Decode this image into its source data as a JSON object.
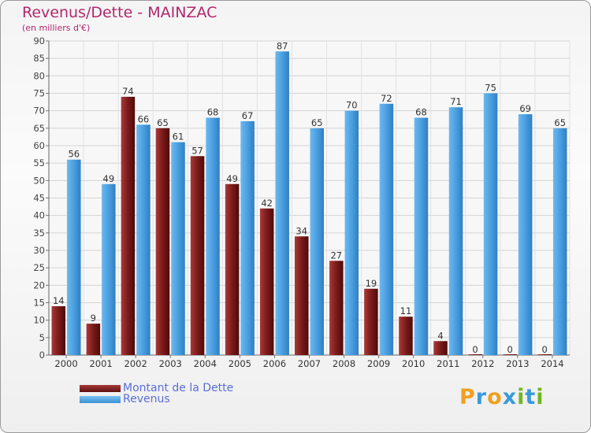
{
  "title": "Revenus/Dette - MAINZAC",
  "subtitle": "(en milliers d'€)",
  "logo": {
    "letters": [
      "P",
      "r",
      "o",
      "x",
      "i",
      "t",
      "i"
    ],
    "colors": [
      "#f0a020",
      "#3a9ad9",
      "#f0a020",
      "#3a9ad9",
      "#70b820",
      "#3a9ad9",
      "#70b820"
    ]
  },
  "chart_data": {
    "type": "bar",
    "categories": [
      "2000",
      "2001",
      "2002",
      "2003",
      "2004",
      "2005",
      "2006",
      "2007",
      "2008",
      "2009",
      "2010",
      "2011",
      "2012",
      "2013",
      "2014"
    ],
    "series": [
      {
        "name": "Montant de la Dette",
        "color": "#7a1a1a",
        "values": [
          14,
          9,
          74,
          65,
          57,
          49,
          42,
          34,
          27,
          19,
          11,
          4,
          0,
          0,
          0
        ]
      },
      {
        "name": "Revenus",
        "color": "#4a9fe0",
        "values": [
          56,
          49,
          66,
          61,
          68,
          67,
          87,
          65,
          70,
          72,
          68,
          71,
          75,
          69,
          65
        ]
      }
    ],
    "ylim": [
      0,
      90
    ],
    "yticks": [
      0,
      5,
      10,
      15,
      20,
      25,
      30,
      35,
      40,
      45,
      50,
      55,
      60,
      65,
      70,
      75,
      80,
      85,
      90
    ],
    "grid": true,
    "legend": "bottom-left"
  }
}
